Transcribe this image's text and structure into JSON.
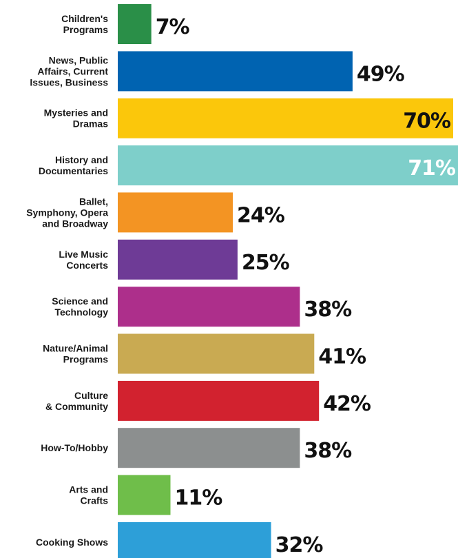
{
  "chart_data": {
    "type": "bar",
    "orientation": "horizontal",
    "title": "",
    "xlabel": "",
    "ylabel": "",
    "xlim": [
      0,
      71
    ],
    "grid": false,
    "legend": "none",
    "unit": "%",
    "categories": [
      [
        "Children's",
        "Programs"
      ],
      [
        "News, Public",
        "Affairs, Current",
        "Issues, Business"
      ],
      [
        "Mysteries  and",
        "Dramas"
      ],
      [
        "History and",
        "Documentaries"
      ],
      [
        "Ballet,",
        "Symphony, Opera",
        "and  Broadway"
      ],
      [
        "Live Music",
        "Concerts"
      ],
      [
        "Science and",
        "Technology"
      ],
      [
        "Nature/Animal",
        "Programs"
      ],
      [
        "Culture",
        "& Community"
      ],
      [
        "How-To/Hobby"
      ],
      [
        "Arts and",
        "Crafts"
      ],
      [
        "Cooking Shows"
      ]
    ],
    "values": [
      7,
      49,
      70,
      71,
      24,
      25,
      38,
      41,
      42,
      38,
      11,
      32
    ],
    "value_labels": [
      "7%",
      "49%",
      "70%",
      "71%",
      "24%",
      "25%",
      "38%",
      "41%",
      "42%",
      "38%",
      "11%",
      "32%"
    ],
    "colors": [
      "#2a8f48",
      "#0063b1",
      "#fbc70b",
      "#7ecfca",
      "#f39423",
      "#6e3b96",
      "#ad2f8b",
      "#c9aa52",
      "#d2222f",
      "#8c8f8f",
      "#6fbe4a",
      "#2d9fd8"
    ],
    "label_inside": [
      false,
      false,
      true,
      true,
      false,
      false,
      false,
      false,
      false,
      false,
      false,
      false
    ]
  }
}
